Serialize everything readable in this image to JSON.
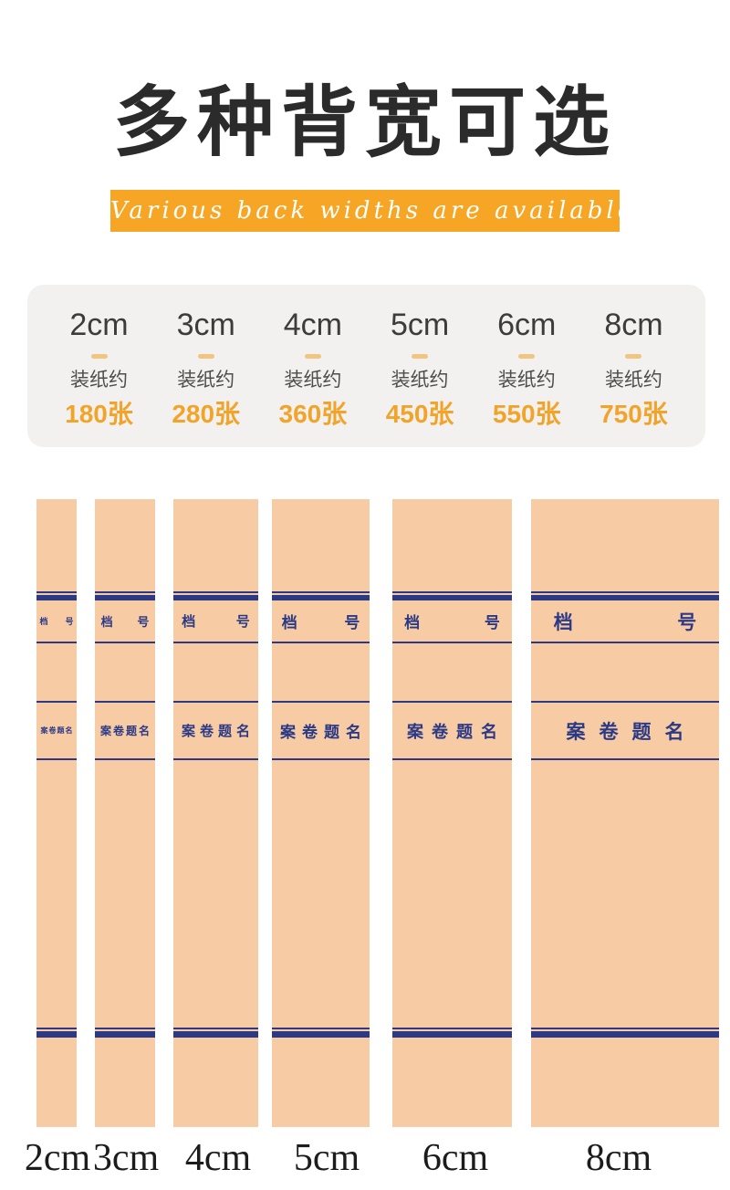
{
  "header": {
    "title": "多种背宽可选",
    "subtitle": "Various back widths are available"
  },
  "colors": {
    "accent_orange": "#f6a624",
    "capacity_orange": "#f2a329",
    "archive_navy": "#2c3a86",
    "kraft_tan": "#f7cba4",
    "card_gray": "#f2f1ef"
  },
  "capacity_card": {
    "items": [
      {
        "size": "2cm",
        "note": "装纸约",
        "capacity": "180张"
      },
      {
        "size": "3cm",
        "note": "装纸约",
        "capacity": "280张"
      },
      {
        "size": "4cm",
        "note": "装纸约",
        "capacity": "360张"
      },
      {
        "size": "5cm",
        "note": "装纸约",
        "capacity": "450张"
      },
      {
        "size": "6cm",
        "note": "装纸约",
        "capacity": "550张"
      },
      {
        "size": "8cm",
        "note": "装纸约",
        "capacity": "750张"
      }
    ]
  },
  "spines": {
    "file_no_left": "档",
    "file_no_right": "号",
    "title_label": "案卷题名",
    "items": [
      {
        "size_label": "2cm"
      },
      {
        "size_label": "3cm"
      },
      {
        "size_label": "4cm"
      },
      {
        "size_label": "5cm"
      },
      {
        "size_label": "6cm"
      },
      {
        "size_label": "8cm"
      }
    ]
  }
}
